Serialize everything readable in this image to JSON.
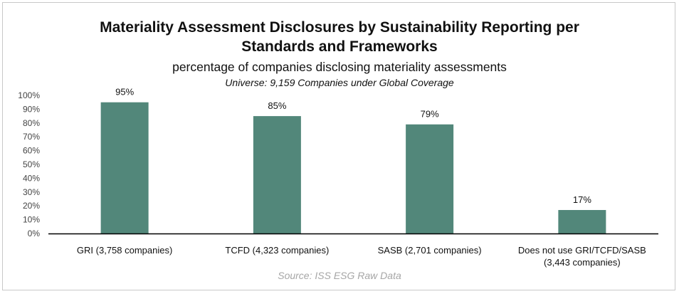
{
  "chart_data": {
    "type": "bar",
    "title_line1": "Materiality Assessment Disclosures by Sustainability Reporting per",
    "title_line2": "Standards and Frameworks",
    "subtitle": "percentage of companies disclosing materiality assessments",
    "universe": "Universe: 9,159 Companies under Global Coverage",
    "source": "Source: ISS ESG Raw Data",
    "categories": [
      [
        "GRI (3,758 companies)"
      ],
      [
        "TCFD (4,323 companies)"
      ],
      [
        "SASB (2,701 companies)"
      ],
      [
        "Does not use GRI/TCFD/SASB",
        "(3,443 companies)"
      ]
    ],
    "values": [
      95,
      85,
      79,
      17
    ],
    "data_labels": [
      "95%",
      "85%",
      "79%",
      "17%"
    ],
    "ylim": [
      0,
      100
    ],
    "yticks": [
      "0%",
      "10%",
      "20%",
      "30%",
      "40%",
      "50%",
      "60%",
      "70%",
      "80%",
      "90%",
      "100%"
    ],
    "bar_color": "#52877a",
    "grid": false,
    "legend": "none"
  }
}
